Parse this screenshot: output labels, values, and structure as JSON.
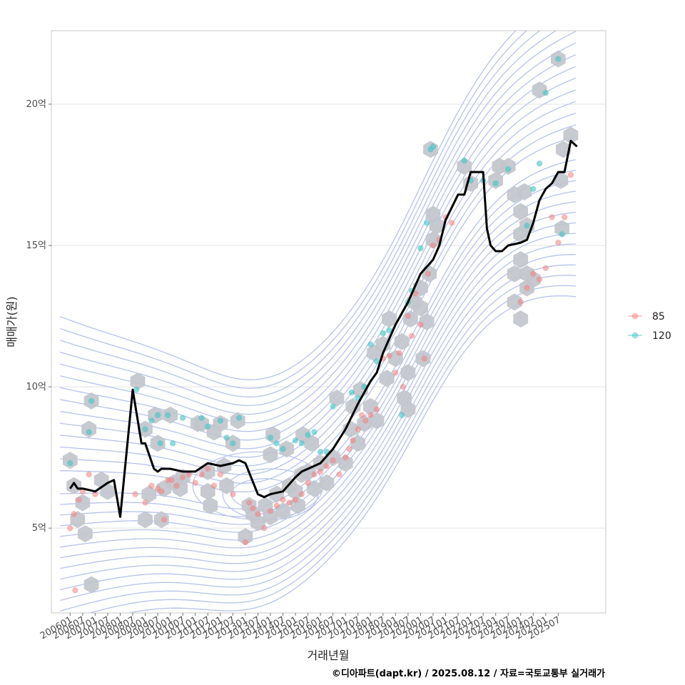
{
  "chart_data": {
    "type": "line",
    "xlabel": "거래년월",
    "ylabel": "매매가(원)",
    "caption": "©디아파트(dapt.kr) / 2025.08.12 / 자료=국토교통부 실거래가",
    "x_tick_labels": [
      "200601",
      "200607",
      "200701",
      "200707",
      "200801",
      "200807",
      "200901",
      "200907",
      "201001",
      "201007",
      "201101",
      "201107",
      "201201",
      "201207",
      "201301",
      "201307",
      "201401",
      "201407",
      "201501",
      "201507",
      "201601",
      "201607",
      "201701",
      "201707",
      "201801",
      "201807",
      "201901",
      "201907",
      "202001",
      "202007",
      "202101",
      "202107",
      "202201",
      "202207",
      "202301",
      "202307",
      "202401",
      "202407",
      "202501",
      "202507"
    ],
    "y_ticks": [
      5,
      10,
      15,
      20
    ],
    "y_tick_labels": [
      "5억",
      "10억",
      "15억",
      "20억"
    ],
    "ylim": [
      2.0,
      22.6
    ],
    "xlim": [
      -1.5,
      42.8
    ],
    "grid": "horizontal",
    "legend_position": "right",
    "series": [
      {
        "name": "85",
        "color": "#f08080"
      },
      {
        "name": "120",
        "color": "#40c4c4"
      }
    ],
    "trend_line": {
      "color": "#000000",
      "x": [
        0,
        0.3,
        0.6,
        1,
        2,
        3,
        3.5,
        4,
        5,
        5.7,
        6,
        6.7,
        7.0,
        7.3,
        7.7,
        8,
        9,
        9.5,
        10,
        11,
        12,
        13,
        13.5,
        14,
        15,
        15.5,
        16,
        17,
        18,
        18.5,
        19,
        20,
        21,
        22,
        23,
        24,
        24.5,
        25,
        26,
        27,
        28,
        29,
        29.5,
        30,
        31,
        31.5,
        32,
        32.5,
        33,
        33.3,
        33.6,
        34,
        34.5,
        35,
        36,
        36.5,
        37,
        37.5,
        38,
        38.5,
        39,
        39.5,
        40,
        40.5
      ],
      "y": [
        6.4,
        6.6,
        6.4,
        6.4,
        6.3,
        6.6,
        6.7,
        5.4,
        9.9,
        8.0,
        8.0,
        7.1,
        7.0,
        7.1,
        7.1,
        7.1,
        7.0,
        7.0,
        7.0,
        7.3,
        7.2,
        7.3,
        7.4,
        7.3,
        6.2,
        6.1,
        6.2,
        6.3,
        6.8,
        7.0,
        7.1,
        7.3,
        7.8,
        8.5,
        9.4,
        10.2,
        10.5,
        11.2,
        12.2,
        13.0,
        14.0,
        14.5,
        15.0,
        15.9,
        16.8,
        16.8,
        17.6,
        17.6,
        17.6,
        15.6,
        15.0,
        14.8,
        14.8,
        15.0,
        15.1,
        15.2,
        15.8,
        16.6,
        17.0,
        17.2,
        17.6,
        17.6,
        18.7,
        18.5
      ]
    },
    "points_85": [
      [
        0,
        5.0
      ],
      [
        0.3,
        5.5
      ],
      [
        0.7,
        6.0
      ],
      [
        1.0,
        6.3
      ],
      [
        1.5,
        6.9
      ],
      [
        2.0,
        6.2
      ],
      [
        5.2,
        6.2
      ],
      [
        6.0,
        5.9
      ],
      [
        6.5,
        6.5
      ],
      [
        7.0,
        6.4
      ],
      [
        7.3,
        6.3
      ],
      [
        7.5,
        5.3
      ],
      [
        7.8,
        6.7
      ],
      [
        8.1,
        6.7
      ],
      [
        8.5,
        6.5
      ],
      [
        9.0,
        6.8
      ],
      [
        9.5,
        6.9
      ],
      [
        10.0,
        6.6
      ],
      [
        10.5,
        6.9
      ],
      [
        11.0,
        7.1
      ],
      [
        11.5,
        6.5
      ],
      [
        12.0,
        6.9
      ],
      [
        13.0,
        6.2
      ],
      [
        14.0,
        4.5
      ],
      [
        14.3,
        5.9
      ],
      [
        14.6,
        5.7
      ],
      [
        15.0,
        5.5
      ],
      [
        15.5,
        5.0
      ],
      [
        16.0,
        5.6
      ],
      [
        16.5,
        5.8
      ],
      [
        17.0,
        6.0
      ],
      [
        17.5,
        5.9
      ],
      [
        18.0,
        6.0
      ],
      [
        18.5,
        6.2
      ],
      [
        19.0,
        6.6
      ],
      [
        19.5,
        6.9
      ],
      [
        20.0,
        7.0
      ],
      [
        20.5,
        7.2
      ],
      [
        21.0,
        7.4
      ],
      [
        21.5,
        6.9
      ],
      [
        22.0,
        7.5
      ],
      [
        22.3,
        7.8
      ],
      [
        22.6,
        8.1
      ],
      [
        23.0,
        8.5
      ],
      [
        23.3,
        9.0
      ],
      [
        23.6,
        8.8
      ],
      [
        24.0,
        9.0
      ],
      [
        24.5,
        9.2
      ],
      [
        25.0,
        11.0
      ],
      [
        25.5,
        11.1
      ],
      [
        26.0,
        10.5
      ],
      [
        26.3,
        11.2
      ],
      [
        26.6,
        10.0
      ],
      [
        27.0,
        12.5
      ],
      [
        27.3,
        11.8
      ],
      [
        27.6,
        13.3
      ],
      [
        28.0,
        12.2
      ],
      [
        28.3,
        11.0
      ],
      [
        28.6,
        14.0
      ],
      [
        29.0,
        15.0
      ],
      [
        29.5,
        15.2
      ],
      [
        30.0,
        16.0
      ],
      [
        30.5,
        15.8
      ],
      [
        36.0,
        13.0
      ],
      [
        36.5,
        13.5
      ],
      [
        37.0,
        14.0
      ],
      [
        37.5,
        13.8
      ],
      [
        38.0,
        14.2
      ],
      [
        38.5,
        16.0
      ],
      [
        39.0,
        15.1
      ],
      [
        39.5,
        16.0
      ],
      [
        40.0,
        17.5
      ],
      [
        0.4,
        2.8
      ]
    ],
    "points_120": [
      [
        0,
        7.3
      ],
      [
        1.5,
        8.4
      ],
      [
        1.7,
        9.5
      ],
      [
        5.3,
        9.9
      ],
      [
        6.0,
        8.5
      ],
      [
        6.5,
        8.8
      ],
      [
        7.0,
        9.0
      ],
      [
        7.2,
        8.0
      ],
      [
        7.8,
        9.0
      ],
      [
        8.2,
        8.0
      ],
      [
        9.0,
        8.9
      ],
      [
        10.5,
        8.9
      ],
      [
        11.0,
        8.6
      ],
      [
        12.0,
        8.8
      ],
      [
        12.5,
        8.2
      ],
      [
        13.0,
        8.0
      ],
      [
        13.5,
        8.9
      ],
      [
        16.0,
        8.2
      ],
      [
        16.5,
        8.0
      ],
      [
        17.0,
        7.8
      ],
      [
        18.0,
        8.1
      ],
      [
        18.5,
        8.0
      ],
      [
        19.0,
        8.3
      ],
      [
        19.5,
        8.4
      ],
      [
        20.0,
        7.7
      ],
      [
        20.5,
        7.7
      ],
      [
        21.0,
        9.3
      ],
      [
        22.5,
        9.8
      ],
      [
        23.0,
        9.6
      ],
      [
        23.5,
        10.0
      ],
      [
        24.0,
        11.5
      ],
      [
        24.5,
        10.9
      ],
      [
        25.0,
        11.9
      ],
      [
        25.5,
        12.0
      ],
      [
        26.5,
        9.0
      ],
      [
        27.0,
        13.0
      ],
      [
        27.3,
        13.4
      ],
      [
        28.0,
        14.9
      ],
      [
        28.5,
        15.8
      ],
      [
        28.8,
        18.4
      ],
      [
        29.0,
        18.5
      ],
      [
        31.5,
        18.0
      ],
      [
        32.0,
        17.3
      ],
      [
        33.0,
        17.3
      ],
      [
        34.0,
        17.2
      ],
      [
        35.0,
        17.7
      ],
      [
        36.5,
        15.7
      ],
      [
        37.0,
        17.0
      ],
      [
        37.5,
        17.9
      ],
      [
        38.0,
        20.4
      ],
      [
        39.0,
        21.6
      ],
      [
        39.3,
        15.4
      ]
    ],
    "hexbins": [
      [
        0,
        7.4
      ],
      [
        0.3,
        6.5
      ],
      [
        0.6,
        5.3
      ],
      [
        1.0,
        5.9
      ],
      [
        1.2,
        4.8
      ],
      [
        1.5,
        8.5
      ],
      [
        1.7,
        9.5
      ],
      [
        2.5,
        6.7
      ],
      [
        3.0,
        6.3
      ],
      [
        1.7,
        3.0
      ],
      [
        5.4,
        10.2
      ],
      [
        6.0,
        8.5
      ],
      [
        6.3,
        6.2
      ],
      [
        6.0,
        5.3
      ],
      [
        6.8,
        9.0
      ],
      [
        7.0,
        8.0
      ],
      [
        7.3,
        5.3
      ],
      [
        7.5,
        6.4
      ],
      [
        8.0,
        9.0
      ],
      [
        8.3,
        6.6
      ],
      [
        8.8,
        6.4
      ],
      [
        9.0,
        6.8
      ],
      [
        10.2,
        8.7
      ],
      [
        10.5,
        8.7
      ],
      [
        11.0,
        7.0
      ],
      [
        11.0,
        6.3
      ],
      [
        11.2,
        5.8
      ],
      [
        11.5,
        8.4
      ],
      [
        12.0,
        8.7
      ],
      [
        12.3,
        7.2
      ],
      [
        12.5,
        6.5
      ],
      [
        13.0,
        8.0
      ],
      [
        13.4,
        8.8
      ],
      [
        14.0,
        4.7
      ],
      [
        14.3,
        5.8
      ],
      [
        14.6,
        5.5
      ],
      [
        15.0,
        5.2
      ],
      [
        15.6,
        5.8
      ],
      [
        16.0,
        5.4
      ],
      [
        16.0,
        7.6
      ],
      [
        16.2,
        8.3
      ],
      [
        16.5,
        6.2
      ],
      [
        17.0,
        5.6
      ],
      [
        17.3,
        7.8
      ],
      [
        17.5,
        6.5
      ],
      [
        18.0,
        6.3
      ],
      [
        18.2,
        5.8
      ],
      [
        18.5,
        6.9
      ],
      [
        18.6,
        8.3
      ],
      [
        19.0,
        7.0
      ],
      [
        19.3,
        8.0
      ],
      [
        19.5,
        6.4
      ],
      [
        20.0,
        7.3
      ],
      [
        20.5,
        6.6
      ],
      [
        21.0,
        7.5
      ],
      [
        21.3,
        9.6
      ],
      [
        22.0,
        7.3
      ],
      [
        22.4,
        8.5
      ],
      [
        22.6,
        9.3
      ],
      [
        23.0,
        8.0
      ],
      [
        23.2,
        9.9
      ],
      [
        23.5,
        8.7
      ],
      [
        24.0,
        9.3
      ],
      [
        24.3,
        11.2
      ],
      [
        24.5,
        8.8
      ],
      [
        25.0,
        11.5
      ],
      [
        25.3,
        10.3
      ],
      [
        25.5,
        12.4
      ],
      [
        26.0,
        11.0
      ],
      [
        26.5,
        11.6
      ],
      [
        26.7,
        9.6
      ],
      [
        27.0,
        9.2
      ],
      [
        27.0,
        10.5
      ],
      [
        27.2,
        12.4
      ],
      [
        27.5,
        13.0
      ],
      [
        28.0,
        12.8
      ],
      [
        28.0,
        13.5
      ],
      [
        28.2,
        11.0
      ],
      [
        28.5,
        12.3
      ],
      [
        28.7,
        14.0
      ],
      [
        29.0,
        15.2
      ],
      [
        29.0,
        16.1
      ],
      [
        29.3,
        15.7
      ],
      [
        28.8,
        18.4
      ],
      [
        31.5,
        17.8
      ],
      [
        32.0,
        17.2
      ],
      [
        34.0,
        17.3
      ],
      [
        34.3,
        17.8
      ],
      [
        35.0,
        17.8
      ],
      [
        35.5,
        16.8
      ],
      [
        36.0,
        16.2
      ],
      [
        36.3,
        16.9
      ],
      [
        36.0,
        15.4
      ],
      [
        36.5,
        15.7
      ],
      [
        35.5,
        14.0
      ],
      [
        35.5,
        13.0
      ],
      [
        36.0,
        12.4
      ],
      [
        36.0,
        14.5
      ],
      [
        36.5,
        14.0
      ],
      [
        36.5,
        13.5
      ],
      [
        37.0,
        13.8
      ],
      [
        37.5,
        20.5
      ],
      [
        39.0,
        21.6
      ],
      [
        39.4,
        18.4
      ],
      [
        40.0,
        18.9
      ],
      [
        39.3,
        15.6
      ],
      [
        39.2,
        17.3
      ]
    ],
    "contour_levels": 14
  }
}
